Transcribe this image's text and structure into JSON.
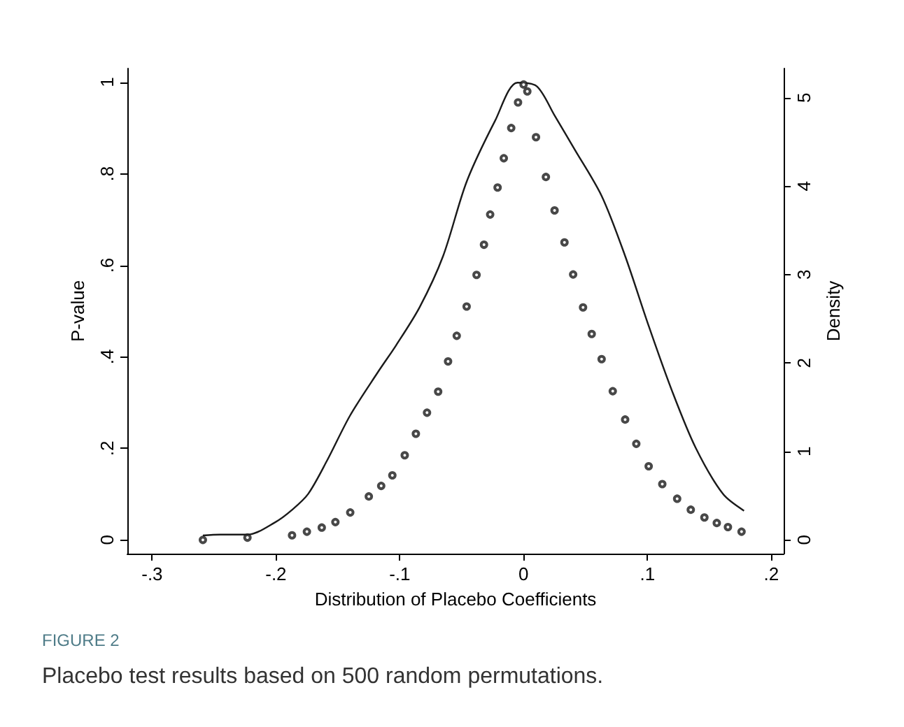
{
  "chart_data": {
    "type": "scatter",
    "xlabel": "Distribution of Placebo Coefficients",
    "ylabel": "P-value",
    "y2label": "Density",
    "annotations": [
      "FIGURE 2",
      "Placebo test results based on 500 random permutations."
    ],
    "xlim": [
      -0.32,
      0.21
    ],
    "xticks": [
      {
        "value": -0.3,
        "label": "-.3"
      },
      {
        "value": -0.2,
        "label": "-.2"
      },
      {
        "value": -0.1,
        "label": "-.1"
      },
      0,
      {
        "value": 0.1,
        "label": ".1"
      },
      {
        "value": 0.2,
        "label": ".2"
      }
    ],
    "ylim": [
      -0.03,
      1.03
    ],
    "yticks": [
      0,
      {
        "value": 0.2,
        "label": ".2"
      },
      {
        "value": 0.4,
        "label": ".4"
      },
      {
        "value": 0.6,
        "label": ".6"
      },
      {
        "value": 0.8,
        "label": ".8"
      },
      1
    ],
    "y2lim": [
      -0.155,
      5.33
    ],
    "y2ticks": [
      0,
      1,
      2,
      3,
      4,
      5
    ],
    "grid": false,
    "series": [
      {
        "marker": "circle",
        "color": "#1a1a1a",
        "x": [
          -0.259,
          -0.223,
          -0.187,
          -0.175,
          -0.163,
          -0.152,
          -0.14,
          -0.125,
          -0.115,
          -0.106,
          -0.096,
          -0.087,
          -0.078,
          -0.069,
          -0.061,
          -0.054,
          -0.046,
          -0.038,
          -0.032,
          -0.027,
          -0.021,
          -0.016,
          -0.01,
          -0.0045,
          0,
          0.003,
          0.01,
          0.018,
          0.025,
          0.033,
          0.04,
          0.048,
          0.055,
          0.063,
          0.072,
          0.082,
          0.091,
          0.101,
          0.112,
          0.124,
          0.135,
          0.146,
          0.156,
          0.165,
          0.176
        ],
        "values": [
          0,
          0.005,
          0.01,
          0.018,
          0.027,
          0.039,
          0.06,
          0.095,
          0.118,
          0.141,
          0.185,
          0.232,
          0.278,
          0.324,
          0.39,
          0.446,
          0.51,
          0.579,
          0.645,
          0.711,
          0.77,
          0.834,
          0.9,
          0.956,
          0.995,
          0.98,
          0.88,
          0.793,
          0.72,
          0.65,
          0.58,
          0.508,
          0.45,
          0.395,
          0.325,
          0.263,
          0.21,
          0.161,
          0.122,
          0.09,
          0.066,
          0.049,
          0.037,
          0.028,
          0.018
        ]
      },
      {
        "type": "line",
        "axis": "y2",
        "marker": "none",
        "line_style": "solid",
        "color": "#1a1a1a",
        "x": [
          -0.259,
          -0.245,
          -0.223,
          -0.2006,
          -0.187,
          -0.174,
          -0.159,
          -0.14,
          -0.118,
          -0.103,
          -0.084,
          -0.065,
          -0.046,
          -0.023,
          -0.005,
          0.0106,
          0.025,
          0.041,
          0.063,
          0.082,
          0.101,
          0.12,
          0.139,
          0.161,
          0.178
        ],
        "values": [
          0.05,
          0.06,
          0.06,
          0.2,
          0.34,
          0.52,
          0.89,
          1.41,
          1.89,
          2.2,
          2.63,
          3.21,
          4.05,
          4.74,
          5.17,
          5.13,
          4.8,
          4.42,
          3.89,
          3.21,
          2.42,
          1.68,
          1.04,
          0.52,
          0.33
        ]
      }
    ]
  }
}
